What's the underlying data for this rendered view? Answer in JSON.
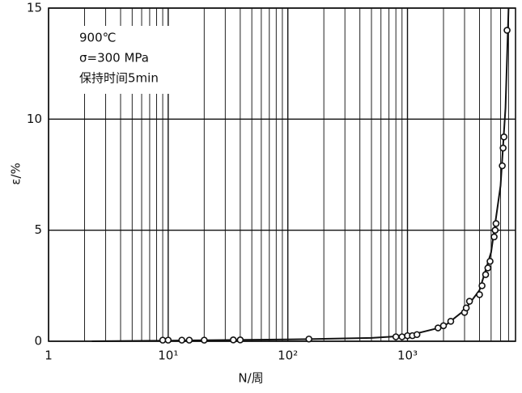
{
  "chart_data": {
    "type": "scatter",
    "annotations": [
      "900℃",
      "σ=300 MPa",
      "保持时间5min"
    ],
    "x_label": "N/周",
    "y_label": "ε/%",
    "x_log": true,
    "xlim": [
      1,
      8000
    ],
    "xticks": [
      {
        "value": 1,
        "label": "1"
      },
      {
        "value": 10,
        "label": "10¹"
      },
      {
        "value": 100,
        "label": "10²"
      },
      {
        "value": 1000,
        "label": "10³"
      }
    ],
    "x_minor_ticks": [
      2,
      3,
      4,
      5,
      6,
      7,
      8,
      9,
      20,
      30,
      40,
      50,
      60,
      70,
      80,
      90,
      200,
      300,
      400,
      500,
      600,
      700,
      800,
      900,
      2000,
      3000,
      4000,
      5000,
      6000,
      7000
    ],
    "ylim": [
      0,
      15
    ],
    "yticks": [
      0,
      5,
      10,
      15
    ],
    "grid": true,
    "points": {
      "color": "#111",
      "x": [
        9,
        10,
        13,
        15,
        20,
        35,
        40,
        150,
        800,
        900,
        1000,
        1100,
        1200,
        1800,
        2000,
        2300,
        3000,
        3100,
        3300,
        4000,
        4200,
        4500,
        4700,
        4900,
        5300,
        5400,
        5500,
        6200,
        6300,
        6400,
        6800
      ],
      "y": [
        0.05,
        0.05,
        0.05,
        0.05,
        0.05,
        0.06,
        0.06,
        0.1,
        0.2,
        0.2,
        0.25,
        0.25,
        0.3,
        0.6,
        0.7,
        0.9,
        1.3,
        1.5,
        1.8,
        2.1,
        2.5,
        3.0,
        3.3,
        3.6,
        4.7,
        5.0,
        5.3,
        7.9,
        8.7,
        9.2,
        14
      ]
    },
    "curve": {
      "color": "#111",
      "x": [
        2.3,
        10,
        100,
        500,
        1000,
        2000,
        3000,
        4000,
        5000,
        6000,
        6600,
        7000
      ],
      "y": [
        0,
        0.03,
        0.08,
        0.15,
        0.25,
        0.65,
        1.4,
        2.3,
        4,
        7,
        10.5,
        15
      ]
    }
  }
}
